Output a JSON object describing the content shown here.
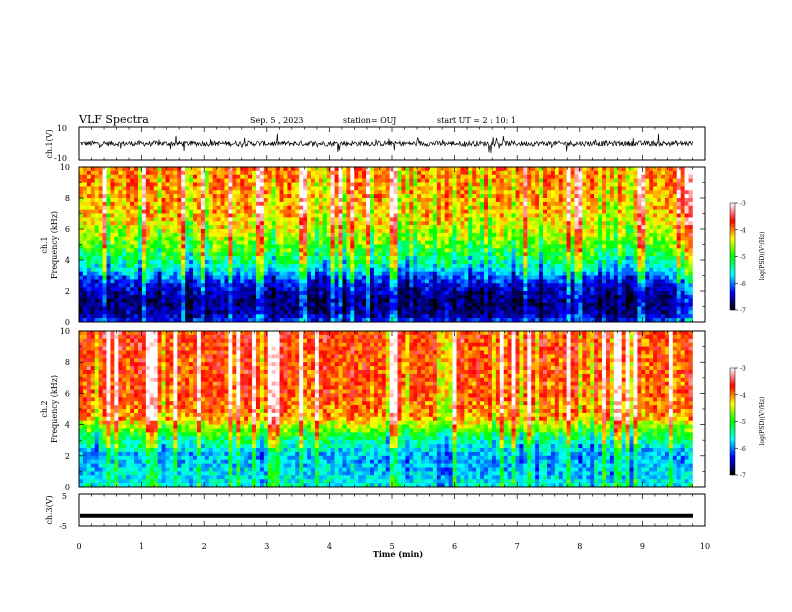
{
  "header": {
    "title": "VLF Spectra",
    "date": "Sep. 5 , 2023",
    "station": "station= OUJ",
    "start": "start UT = 2 : 10: 1"
  },
  "colorbar": {
    "label": "log(PSD)(V²/Hz)",
    "ticks": [
      "-3",
      "-4",
      "-5",
      "-6",
      "-7"
    ],
    "colors": [
      "#ffffff",
      "#ff0000",
      "#ffff00",
      "#00ff00",
      "#00ffff",
      "#0000ff",
      "#000000"
    ]
  },
  "chart_data": [
    {
      "type": "line",
      "name": "ch1 waveform",
      "ylabel": "ch.1(V)",
      "ylim": [
        -10,
        10
      ],
      "ytick_labels": [
        "10",
        "-10"
      ],
      "xlim": [
        0,
        10
      ],
      "baseline": 0,
      "trace_color": "#000000"
    },
    {
      "type": "heatmap",
      "name": "ch1 spectrogram",
      "ylabel_line1": "ch.1",
      "ylabel_line2": "Frequency (kHz)",
      "ylim": [
        0,
        10
      ],
      "ytick_labels": [
        "0",
        "2",
        "4",
        "6",
        "8",
        "10"
      ],
      "xlim": [
        0,
        10
      ],
      "data_end_min": 9.8,
      "profile": [
        {
          "f": 0.0,
          "v": -6.0
        },
        {
          "f": 0.5,
          "v": -6.5
        },
        {
          "f": 1.5,
          "v": -6.6
        },
        {
          "f": 2.5,
          "v": -6.2
        },
        {
          "f": 3.5,
          "v": -5.4
        },
        {
          "f": 4.5,
          "v": -4.9
        },
        {
          "f": 5.5,
          "v": -4.5
        },
        {
          "f": 7.0,
          "v": -4.1
        },
        {
          "f": 10.0,
          "v": -3.9
        }
      ]
    },
    {
      "type": "heatmap",
      "name": "ch2 spectrogram",
      "ylabel_line1": "ch.2",
      "ylabel_line2": "Frequency (kHz)",
      "ylim": [
        0,
        10
      ],
      "ytick_labels": [
        "0",
        "2",
        "4",
        "6",
        "8",
        "10"
      ],
      "xlim": [
        0,
        10
      ],
      "data_end_min": 9.8,
      "profile": [
        {
          "f": 0.0,
          "v": -5.4
        },
        {
          "f": 1.0,
          "v": -5.6
        },
        {
          "f": 2.0,
          "v": -5.7
        },
        {
          "f": 3.0,
          "v": -5.2
        },
        {
          "f": 3.8,
          "v": -4.6
        },
        {
          "f": 4.5,
          "v": -4.0
        },
        {
          "f": 6.0,
          "v": -3.8
        },
        {
          "f": 10.0,
          "v": -3.7
        }
      ]
    },
    {
      "type": "line",
      "name": "ch3 signal",
      "ylabel": "ch.3(V)",
      "ylim": [
        -5,
        5
      ],
      "ytick_labels": [
        "5",
        "-5"
      ],
      "xlim": [
        0,
        10
      ],
      "level": -1.8,
      "trace_color": "#000000"
    }
  ],
  "xaxis": {
    "label": "Time (min)",
    "ticks": [
      "0",
      "1",
      "2",
      "3",
      "4",
      "5",
      "6",
      "7",
      "8",
      "9",
      "10"
    ],
    "range": [
      0,
      10
    ]
  }
}
